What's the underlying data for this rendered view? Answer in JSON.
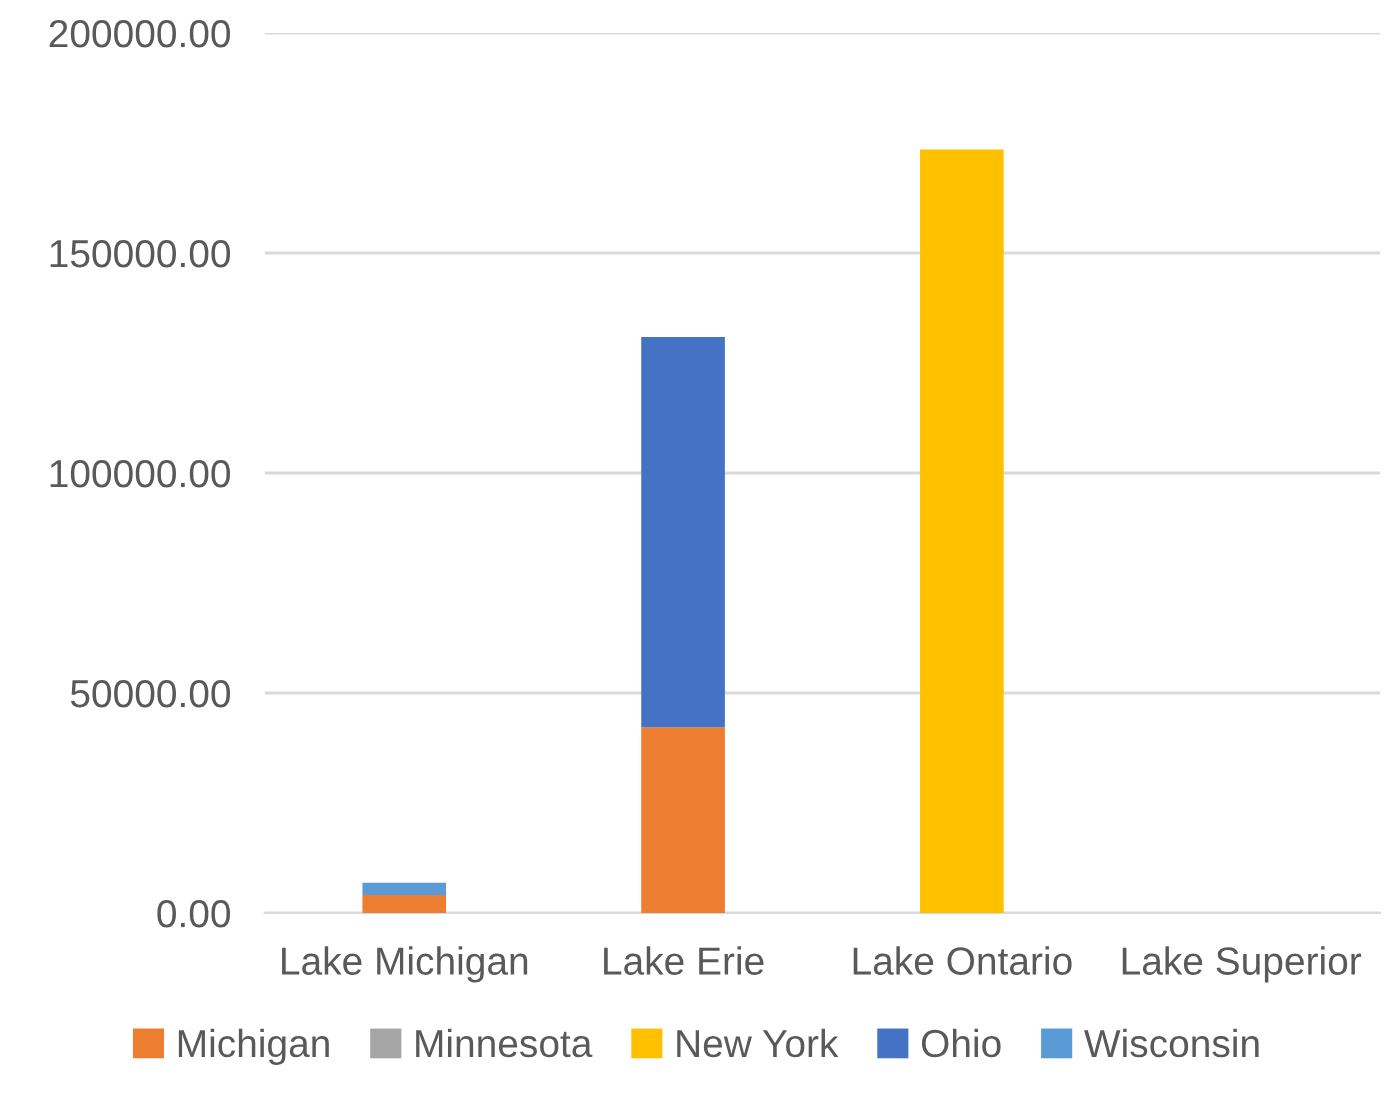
{
  "chart_data": {
    "type": "bar",
    "stacked": true,
    "categories": [
      "Lake Michigan",
      "Lake Erie",
      "Lake Ontario",
      "Lake Superior"
    ],
    "series": [
      {
        "name": "Michigan",
        "color": "#ed7d31",
        "values": [
          4100,
          42200,
          0,
          0
        ]
      },
      {
        "name": "Minnesota",
        "color": "#a5a5a5",
        "values": [
          0,
          0,
          0,
          0
        ]
      },
      {
        "name": "New York",
        "color": "#ffc000",
        "values": [
          0,
          0,
          173500,
          0
        ]
      },
      {
        "name": "Ohio",
        "color": "#4472c4",
        "values": [
          0,
          88700,
          0,
          0
        ]
      },
      {
        "name": "Wisconsin",
        "color": "#5b9bd5",
        "values": [
          2800,
          0,
          0,
          0
        ]
      }
    ],
    "ylim": [
      0,
      200000
    ],
    "yticks": [
      {
        "value": 0,
        "label": "0.00"
      },
      {
        "value": 50000,
        "label": "50000.00"
      },
      {
        "value": 100000,
        "label": "100000.00"
      },
      {
        "value": 150000,
        "label": "150000.00"
      },
      {
        "value": 200000,
        "label": "200000.00"
      }
    ],
    "grid": "y",
    "legend": "bottom"
  }
}
